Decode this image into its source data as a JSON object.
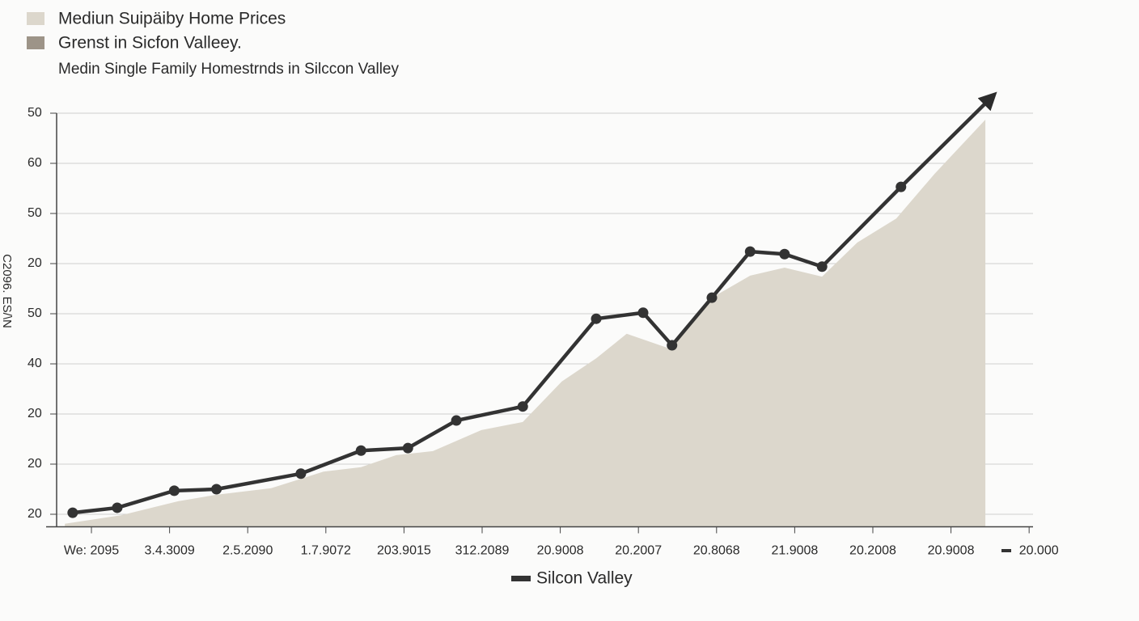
{
  "chart_data": {
    "type": "area-line",
    "title": "Mediun Suipäiby Home Prices",
    "subtitle": "Medin Single Family Homestrnds in Silccon Valley",
    "y_label": "C2096. ES/\\N",
    "legend_extra": [
      {
        "name": "Grenst in Sicfon Valleey.",
        "color": "#9d9488"
      }
    ],
    "xlim": [
      -0.58,
      12.05
    ],
    "xticks": [
      {
        "value": 0,
        "label": "We: 2095"
      },
      {
        "value": 1,
        "label": "3.4.3009"
      },
      {
        "value": 2,
        "label": "2.5.2090"
      },
      {
        "value": 3,
        "label": "1.7.9072"
      },
      {
        "value": 4,
        "label": "203.9015"
      },
      {
        "value": 5,
        "label": "312.2089"
      },
      {
        "value": 6,
        "label": "20.9008"
      },
      {
        "value": 7,
        "label": "20.2007"
      },
      {
        "value": 8,
        "label": "20.8068"
      },
      {
        "value": 9,
        "label": "21.9008"
      },
      {
        "value": 10,
        "label": "20.2008"
      },
      {
        "value": 11,
        "label": "20.9008"
      },
      {
        "value": 12,
        "label": "20.000"
      }
    ],
    "ylim": [
      -0.25,
      8.4
    ],
    "yticks": [
      {
        "value": 0,
        "label": "20"
      },
      {
        "value": 1,
        "label": "20"
      },
      {
        "value": 2,
        "label": "20"
      },
      {
        "value": 3,
        "label": "40"
      },
      {
        "value": 4,
        "label": "50"
      },
      {
        "value": 5,
        "label": "20"
      },
      {
        "value": 6,
        "label": "50"
      },
      {
        "value": 7,
        "label": "60"
      },
      {
        "value": 8,
        "label": "50"
      }
    ],
    "grid": true,
    "series": [
      {
        "name": "Mediun Suipäiby Home Prices",
        "kind": "area",
        "color": "#dcd7cc",
        "x": [
          -0.34,
          0.38,
          1.11,
          1.6,
          2.3,
          2.97,
          3.45,
          3.9,
          4.37,
          4.99,
          5.52,
          6.02,
          6.46,
          6.85,
          7.37,
          7.94,
          8.43,
          8.87,
          9.35,
          9.8,
          10.3,
          10.79,
          11.44
        ],
        "values": [
          -0.19,
          -0.02,
          0.26,
          0.39,
          0.52,
          0.85,
          0.94,
          1.18,
          1.26,
          1.68,
          1.84,
          2.65,
          3.11,
          3.6,
          3.32,
          4.32,
          4.76,
          4.92,
          4.74,
          5.42,
          5.9,
          6.79,
          7.87
        ]
      },
      {
        "name": "Silcon Valley",
        "kind": "line",
        "color": "#333333",
        "x": [
          -0.24,
          0.33,
          1.06,
          1.6,
          2.68,
          3.45,
          4.05,
          4.67,
          5.52,
          6.46,
          7.06,
          7.43,
          7.94,
          8.43,
          8.87,
          9.35,
          10.36,
          11.54
        ],
        "values": [
          0.03,
          0.13,
          0.47,
          0.5,
          0.81,
          1.27,
          1.32,
          1.87,
          2.15,
          3.9,
          4.02,
          3.37,
          4.32,
          5.24,
          5.19,
          4.94,
          6.53,
          8.35
        ]
      }
    ]
  }
}
